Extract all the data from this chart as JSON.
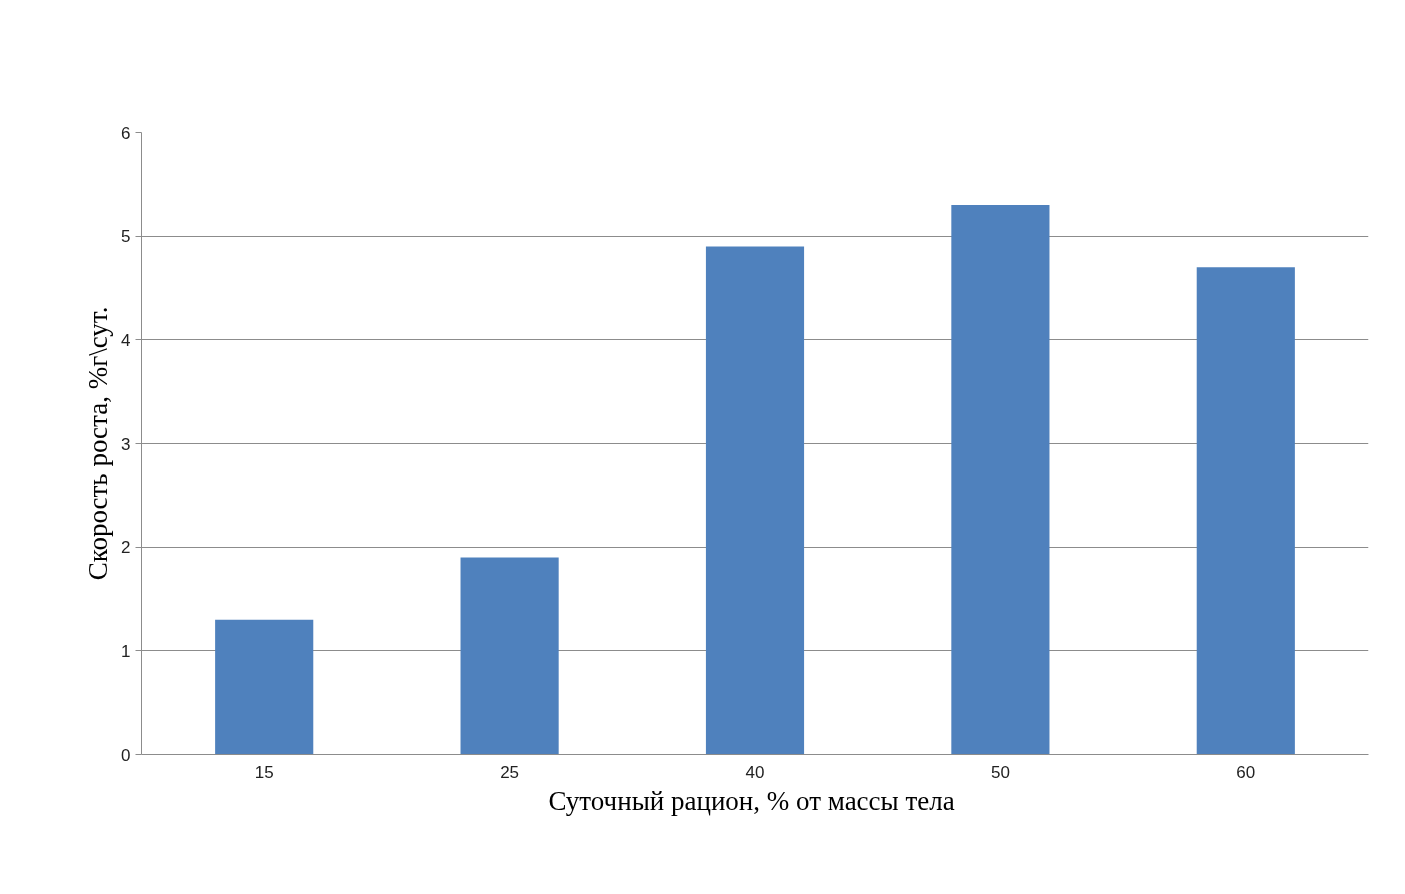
{
  "chart_data": {
    "type": "bar",
    "xlabel": "Суточный рацион, % от массы  тела",
    "ylabel": "Скорость роста, %г\\сут.",
    "categories": [
      "15",
      "25",
      "40",
      "50",
      "60"
    ],
    "values": [
      1.3,
      1.9,
      4.9,
      5.3,
      4.7
    ],
    "color": "#4f81bd",
    "ylim": [
      0,
      6
    ],
    "yticks": [
      0,
      1,
      2,
      3,
      4,
      5,
      6
    ],
    "grid": "y"
  }
}
